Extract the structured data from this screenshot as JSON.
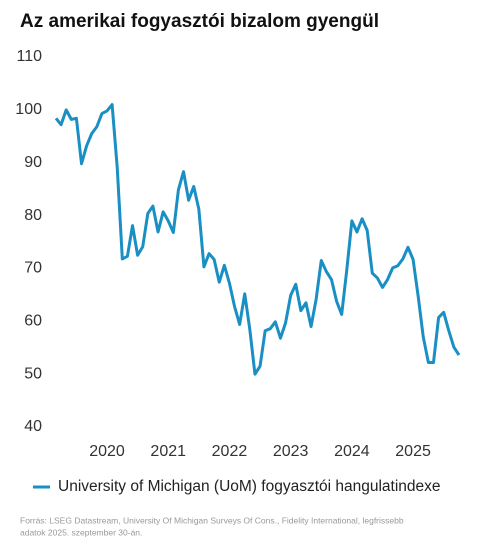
{
  "chart_data": {
    "type": "line",
    "title": "Az amerikai fogyasztói bizalom gyengül",
    "categories": [
      null,
      null,
      null,
      null,
      null,
      null,
      null,
      null,
      null,
      null,
      "2020",
      null,
      null,
      null,
      null,
      null,
      null,
      null,
      null,
      null,
      null,
      null,
      "2021",
      null,
      null,
      null,
      null,
      null,
      null,
      null,
      null,
      null,
      null,
      null,
      "2022",
      null,
      null,
      null,
      null,
      null,
      null,
      null,
      null,
      null,
      null,
      null,
      "2023",
      null,
      null,
      null,
      null,
      null,
      null,
      null,
      null,
      null,
      null,
      null,
      "2024",
      null,
      null,
      null,
      null,
      null,
      null,
      null,
      null,
      null,
      null,
      null,
      "2025",
      null,
      null,
      null,
      null,
      null,
      null,
      null,
      null,
      null
    ],
    "series": [
      {
        "name": "University of Michigan (UoM) fogyasztói hangulatindexe",
        "color": "#1a8fc4",
        "values": [
          98.4,
          97.2,
          100.0,
          98.2,
          98.4,
          89.8,
          93.2,
          95.5,
          96.8,
          99.3,
          99.8,
          101.0,
          89.1,
          71.8,
          72.3,
          78.1,
          72.5,
          74.1,
          80.4,
          81.8,
          76.9,
          80.7,
          79.0,
          76.8,
          84.9,
          88.3,
          82.9,
          85.5,
          81.2,
          70.3,
          72.8,
          71.7,
          67.4,
          70.6,
          67.2,
          62.8,
          59.4,
          65.2,
          58.4,
          50.0,
          51.5,
          58.2,
          58.6,
          59.9,
          56.8,
          59.7,
          64.9,
          67.0,
          62.0,
          63.5,
          59.0,
          64.2,
          71.5,
          69.4,
          67.9,
          63.8,
          61.3,
          69.7,
          79.0,
          76.9,
          79.4,
          77.2,
          69.1,
          68.2,
          66.4,
          67.9,
          70.1,
          70.5,
          71.8,
          74.0,
          71.7,
          64.7,
          57.0,
          52.2,
          52.2,
          60.7,
          61.7,
          58.2,
          55.1,
          53.6
        ]
      }
    ],
    "ylim": [
      40,
      110
    ],
    "yticks": [
      40,
      50,
      60,
      70,
      80,
      90,
      100,
      110
    ],
    "source": [
      "Forrás: LSEG Datastream, University Of Michigan Surveys Of Cons., Fidelity International, legfrissebb",
      "adatok 2025. szeptember 30-án."
    ]
  }
}
